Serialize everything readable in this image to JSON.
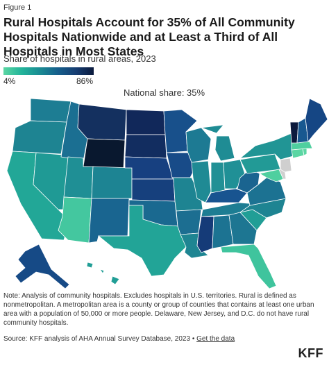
{
  "figure_label": "Figure 1",
  "title": "Rural Hospitals Account for 35% of All Community Hospitals Nationwide and at Least a Third of All Hospitals in Most States",
  "subtitle": "Share of hospitals in rural areas, 2023",
  "legend": {
    "min_label": "4%",
    "max_label": "86%",
    "min_color": "#5bd6a3",
    "max_color": "#0b1a3d"
  },
  "annotation": "National share: 35%",
  "note": "Note: Analysis of community hospitals. Excludes hospitals in U.S. territories. Rural is defined as nonmetropolitan. A metropolitan area is a county or group of counties that contains at least one urban area with a population of 50,000 or more people. Delaware, New Jersey, and D.C. do not have rural community hospitals.",
  "source_prefix": "Source: KFF analysis of AHA Annual Survey Database, 2023 • ",
  "source_link": "Get the data",
  "logo": "KFF",
  "map_colors": {
    "WA": "#1d7d93",
    "OR": "#1e8492",
    "CA": "#22a797",
    "NV": "#1f9a95",
    "ID": "#1b6f92",
    "MT": "#14305f",
    "WY": "#09182f",
    "UT": "#1f8f95",
    "AZ": "#44c79f",
    "CO": "#1d8493",
    "NM": "#196590",
    "ND": "#11285a",
    "SD": "#122d60",
    "NE": "#174080",
    "KS": "#16407d",
    "OK": "#1a6990",
    "TX": "#22a497",
    "MN": "#18508b",
    "IA": "#184b88",
    "MO": "#1e8492",
    "AR": "#1c6e91",
    "LA": "#1e8592",
    "WI": "#1d7a93",
    "IL": "#1f8a94",
    "MI": "#1f8c94",
    "IN": "#219095",
    "OH": "#209096",
    "KY": "#185490",
    "TN": "#1d7d93",
    "MS": "#153b78",
    "AL": "#1c7392",
    "GA": "#1d7692",
    "FL": "#3fc49d",
    "SC": "#219e96",
    "NC": "#1e8492",
    "VA": "#1c7292",
    "WV": "#1a6490",
    "PA": "#229a96",
    "NY": "#219595",
    "VT": "#0b1a3d",
    "NH": "#185890",
    "ME": "#154684",
    "MA": "#4fcf9f",
    "CT": "#5bd6a3",
    "RI": "#5bd6a3",
    "MD": "#4fcf9f",
    "NJ": "#cfcfcf",
    "DE": "#cfcfcf",
    "AK": "#164a86",
    "HI": "#219e96"
  }
}
